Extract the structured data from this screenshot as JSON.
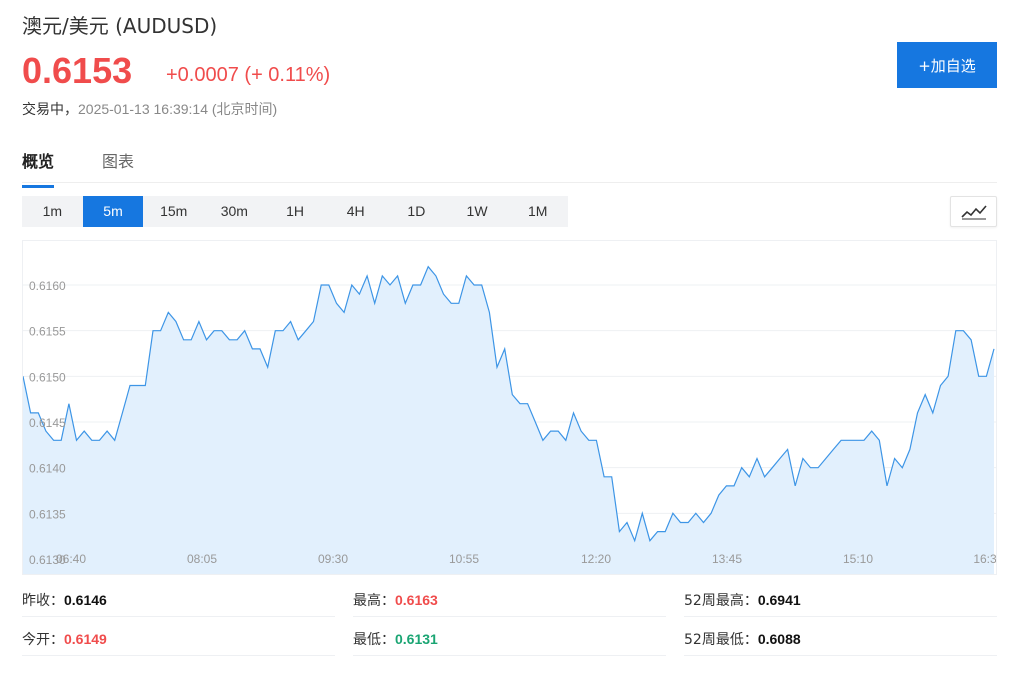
{
  "header": {
    "title": "澳元/美元  (AUDUSD)",
    "price": "0.6153",
    "change": "+0.0007 (+ 0.11%)",
    "status": "交易中，",
    "timestamp": "2025-01-13 16:39:14  (北京时间)",
    "add_label": "+加自选"
  },
  "tabs": [
    {
      "label": "概览",
      "active": true
    },
    {
      "label": "图表",
      "active": false
    }
  ],
  "periods": [
    {
      "label": "1m",
      "active": false
    },
    {
      "label": "5m",
      "active": true
    },
    {
      "label": "15m",
      "active": false
    },
    {
      "label": "30m",
      "active": false
    },
    {
      "label": "1H",
      "active": false
    },
    {
      "label": "4H",
      "active": false
    },
    {
      "label": "1D",
      "active": false
    },
    {
      "label": "1W",
      "active": false
    },
    {
      "label": "1M",
      "active": false
    }
  ],
  "colors": {
    "up": "#f04c4c",
    "down": "#1aa573",
    "accent": "#1677e0",
    "line": "#3d95e6",
    "fill": "#e2f0fd"
  },
  "chart_data": {
    "type": "area",
    "y_ticks": [
      "0.6160",
      "0.6155",
      "0.6150",
      "0.6145",
      "0.6140",
      "0.6135",
      "0.6130"
    ],
    "x_ticks": [
      "06:40",
      "08:05",
      "09:30",
      "10:55",
      "12:20",
      "13:45",
      "15:10",
      "16:3"
    ],
    "ylim": [
      0.613,
      0.6165
    ],
    "grid": true,
    "values": [
      0.615,
      0.6146,
      0.6146,
      0.6144,
      0.6143,
      0.6143,
      0.6147,
      0.6143,
      0.6144,
      0.6143,
      0.6143,
      0.6144,
      0.6143,
      0.6146,
      0.6149,
      0.6149,
      0.6149,
      0.6155,
      0.6155,
      0.6157,
      0.6156,
      0.6154,
      0.6154,
      0.6156,
      0.6154,
      0.6155,
      0.6155,
      0.6154,
      0.6154,
      0.6155,
      0.6153,
      0.6153,
      0.6151,
      0.6155,
      0.6155,
      0.6156,
      0.6154,
      0.6155,
      0.6156,
      0.616,
      0.616,
      0.6158,
      0.6157,
      0.616,
      0.6159,
      0.6161,
      0.6158,
      0.6161,
      0.616,
      0.6161,
      0.6158,
      0.616,
      0.616,
      0.6162,
      0.6161,
      0.6159,
      0.6158,
      0.6158,
      0.6161,
      0.616,
      0.616,
      0.6157,
      0.6151,
      0.6153,
      0.6148,
      0.6147,
      0.6147,
      0.6145,
      0.6143,
      0.6144,
      0.6144,
      0.6143,
      0.6146,
      0.6144,
      0.6143,
      0.6143,
      0.6139,
      0.6139,
      0.6133,
      0.6134,
      0.6132,
      0.6135,
      0.6132,
      0.6133,
      0.6133,
      0.6135,
      0.6134,
      0.6134,
      0.6135,
      0.6134,
      0.6135,
      0.6137,
      0.6138,
      0.6138,
      0.614,
      0.6139,
      0.6141,
      0.6139,
      0.614,
      0.6141,
      0.6142,
      0.6138,
      0.6141,
      0.614,
      0.614,
      0.6141,
      0.6142,
      0.6143,
      0.6143,
      0.6143,
      0.6143,
      0.6144,
      0.6143,
      0.6138,
      0.6141,
      0.614,
      0.6142,
      0.6146,
      0.6148,
      0.6146,
      0.6149,
      0.615,
      0.6155,
      0.6155,
      0.6154,
      0.615,
      0.615,
      0.6153
    ]
  },
  "stats": [
    {
      "label": "昨收：",
      "value": "0.6146",
      "tone": "black"
    },
    {
      "label": "最高：",
      "value": "0.6163",
      "tone": "red"
    },
    {
      "label": "52周最高：",
      "value": "0.6941",
      "tone": "black"
    },
    {
      "label": "今开：",
      "value": "0.6149",
      "tone": "red"
    },
    {
      "label": "最低：",
      "value": "0.6131",
      "tone": "green"
    },
    {
      "label": "52周最低：",
      "value": "0.6088",
      "tone": "black"
    }
  ]
}
